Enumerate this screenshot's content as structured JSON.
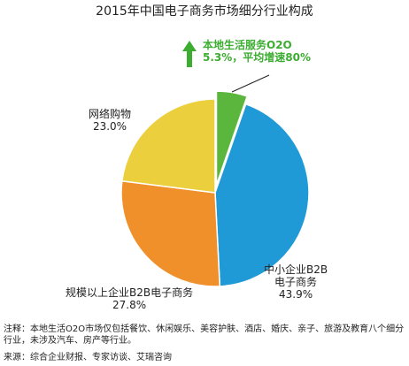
{
  "chart_data": {
    "type": "pie",
    "title": "2015年中国电子商务市场细分行业构成",
    "slices": [
      {
        "name_lines": [
          "本地生活服务O2O",
          "5.3%，平均增速80%"
        ],
        "value": 5.3,
        "color": "#5ab63c",
        "exploded": true
      },
      {
        "name_lines": [
          "中小企业B2B",
          "电子商务",
          "43.9%"
        ],
        "value": 43.9,
        "color": "#1f9ad6"
      },
      {
        "name_lines": [
          "规模以上企业B2B电子商务",
          "27.8%"
        ],
        "value": 27.8,
        "color": "#f0902b"
      },
      {
        "name_lines": [
          "网络购物",
          "23.0%"
        ],
        "value": 23.0,
        "color": "#eccf3d"
      }
    ]
  },
  "footer": {
    "note": "注释：本地生活O2O市场仅包括餐饮、休闲娱乐、美容护肤、酒店、婚庆、亲子、旅游及教育八个细分行业，未涉及汽车、房产等行业。",
    "source": "来源：综合企业财报、专家访谈、艾瑞咨询"
  }
}
